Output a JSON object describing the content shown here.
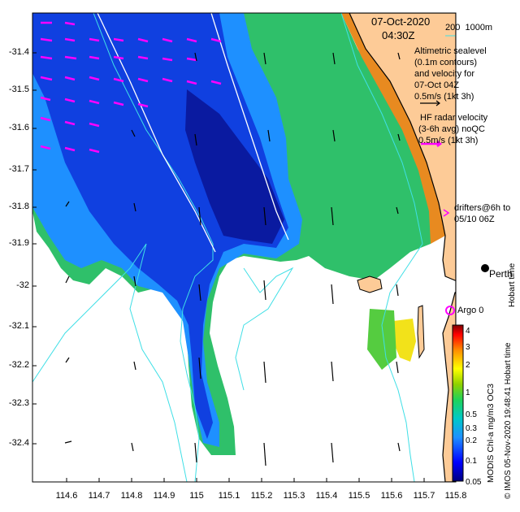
{
  "header": {
    "date": "07-Oct-2020",
    "time": "04:30Z",
    "bathy_legend": "200  1000m"
  },
  "legend": {
    "altimetric": [
      "Altimetric sealevel",
      "(0.1m contours)",
      "and velocity for",
      "07-Oct 04Z",
      "0.5m/s (1kt 3h)"
    ],
    "hf_radar": [
      "HF radar velocity",
      "(3-6h avg) noQC",
      "0.5m/s (1kt 3h)"
    ],
    "drifters": [
      "drifters@6h to",
      "05/10 06Z"
    ]
  },
  "places": {
    "city": "Perth",
    "argo": "Argo 0",
    "hobart_text": "Hobart time"
  },
  "axes": {
    "y_ticks": [
      "-31.4",
      "-31.5",
      "-31.6",
      "-31.7",
      "-31.8",
      "-31.9",
      "-32",
      "-32.1",
      "-32.2",
      "-32.3",
      "-32.4"
    ],
    "x_ticks": [
      "114.6",
      "114.7",
      "114.8",
      "114.9",
      "115",
      "115.1",
      "115.2",
      "115.3",
      "115.4",
      "115.5",
      "115.6",
      "115.7",
      "115.8"
    ]
  },
  "colorbar": {
    "labels": [
      "4",
      "3",
      "2",
      "1",
      "0.5",
      "0.3",
      "0.2",
      "0.1",
      "0.05"
    ],
    "title": "MODIS Chl-a mg/m3 OC3",
    "credit": "© IMOS 05-Nov-2020 19:48:41 Hobart time"
  },
  "colors": {
    "land": "#fdcb97",
    "coast": "#000000",
    "bathy": "#3fdfe6",
    "hf_arrow": "#ff00ff",
    "alt_arrow": "#000000"
  }
}
